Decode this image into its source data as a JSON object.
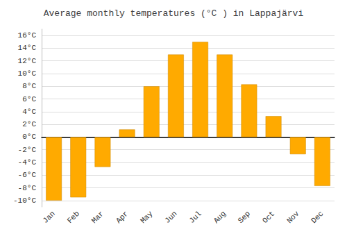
{
  "chart_data": {
    "type": "bar",
    "title": "Average monthly temperatures (°C ) in Lappajärvi",
    "categories": [
      "Jan",
      "Feb",
      "Mar",
      "Apr",
      "May",
      "Jun",
      "Jul",
      "Aug",
      "Sep",
      "Oct",
      "Nov",
      "Dec"
    ],
    "values": [
      -10,
      -9.5,
      -4.7,
      1.2,
      8,
      13,
      15,
      13,
      8.3,
      3.3,
      -2.7,
      -7.7
    ],
    "color": "#FFAA00",
    "ylim": [
      -11,
      17
    ],
    "yticks": [
      {
        "value": -10,
        "label": "-10°C"
      },
      {
        "value": -8,
        "label": "-8°C"
      },
      {
        "value": -6,
        "label": "-6°C"
      },
      {
        "value": -4,
        "label": "-4°C"
      },
      {
        "value": -2,
        "label": "-2°C"
      },
      {
        "value": 0,
        "label": "0°C"
      },
      {
        "value": 2,
        "label": "2°C"
      },
      {
        "value": 4,
        "label": "4°C"
      },
      {
        "value": 6,
        "label": "6°C"
      },
      {
        "value": 8,
        "label": "8°C"
      },
      {
        "value": 10,
        "label": "10°C"
      },
      {
        "value": 12,
        "label": "12°C"
      },
      {
        "value": 14,
        "label": "14°C"
      },
      {
        "value": 16,
        "label": "16°C"
      }
    ],
    "grid": true
  }
}
